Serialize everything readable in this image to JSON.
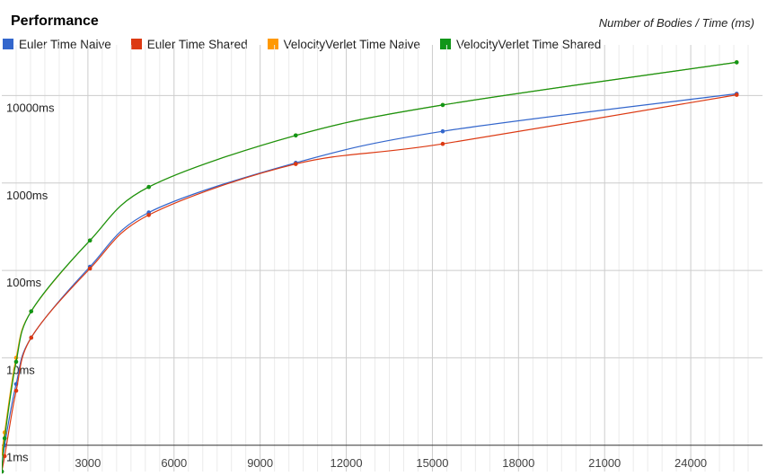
{
  "title": "Performance",
  "subtitle": "Number of Bodies / Time (ms)",
  "chart_data": {
    "type": "line",
    "title": "Performance",
    "subtitle": "Number of Bodies / Time (ms)",
    "x_scale": "linear",
    "y_scale": "log",
    "xlim": [
      0,
      26500
    ],
    "ylim": [
      0.5,
      30000
    ],
    "x_ticks": [
      3000,
      6000,
      9000,
      12000,
      15000,
      18000,
      21000,
      24000
    ],
    "y_ticks": [
      1,
      10,
      100,
      1000,
      10000
    ],
    "y_tick_labels": [
      "1ms",
      "10ms",
      "100ms",
      "1000ms",
      "10000ms"
    ],
    "grid": true,
    "legend_position": "top",
    "series": [
      {
        "name": "Euler Time Naive",
        "color": "#3366cc",
        "points": [
          [
            0,
            0.5
          ],
          [
            100,
            1.0
          ],
          [
            500,
            5.0
          ],
          [
            1024,
            17
          ],
          [
            3072,
            110
          ],
          [
            5120,
            460
          ],
          [
            10240,
            1700
          ],
          [
            15360,
            3900
          ],
          [
            25600,
            10500
          ]
        ]
      },
      {
        "name": "Euler Time Shared",
        "color": "#dc3912",
        "points": [
          [
            0,
            0.5
          ],
          [
            100,
            0.75
          ],
          [
            500,
            4.2
          ],
          [
            1024,
            17
          ],
          [
            3072,
            105
          ],
          [
            5120,
            430
          ],
          [
            10240,
            1650
          ],
          [
            15360,
            2800
          ],
          [
            25600,
            10200
          ]
        ]
      },
      {
        "name": "VelocityVerlet Time Naive",
        "color": "#ff9900",
        "points": [
          [
            0,
            0.8
          ],
          [
            100,
            1.4
          ],
          [
            500,
            10
          ],
          [
            1024,
            34
          ],
          [
            3072,
            220
          ],
          [
            5120,
            900
          ],
          [
            10240,
            3500
          ],
          [
            15360,
            7800
          ],
          [
            25600,
            24000
          ]
        ]
      },
      {
        "name": "VelocityVerlet Time Shared",
        "color": "#109618",
        "points": [
          [
            0,
            0.5
          ],
          [
            100,
            1.2
          ],
          [
            500,
            9
          ],
          [
            1024,
            34
          ],
          [
            3072,
            220
          ],
          [
            5120,
            900
          ],
          [
            10240,
            3500
          ],
          [
            15360,
            7800
          ],
          [
            25600,
            24000
          ]
        ]
      }
    ]
  }
}
